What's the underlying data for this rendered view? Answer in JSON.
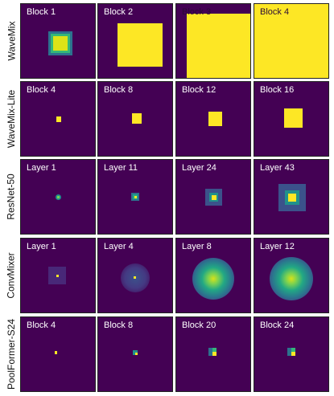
{
  "rows": [
    {
      "label": "WaveMix",
      "tiles": [
        {
          "label": "Block 1"
        },
        {
          "label": "Block 2"
        },
        {
          "label": "Block 3"
        },
        {
          "label": "Block 4"
        }
      ]
    },
    {
      "label": "WaveMix-Lite",
      "tiles": [
        {
          "label": "Block 4"
        },
        {
          "label": "Block 8"
        },
        {
          "label": "Block 12"
        },
        {
          "label": "Block 16"
        }
      ]
    },
    {
      "label": "ResNet-50",
      "tiles": [
        {
          "label": "Layer 1"
        },
        {
          "label": "Layer 11"
        },
        {
          "label": "Layer 24"
        },
        {
          "label": "Layer 43"
        }
      ]
    },
    {
      "label": "ConvMixer",
      "tiles": [
        {
          "label": "Layer 1"
        },
        {
          "label": "Layer 4"
        },
        {
          "label": "Layer 8"
        },
        {
          "label": "Layer 12"
        }
      ]
    },
    {
      "label": "PoolFormer-S24",
      "tiles": [
        {
          "label": "Block 4"
        },
        {
          "label": "Block 8"
        },
        {
          "label": "Block 20"
        },
        {
          "label": "Block 24"
        }
      ]
    }
  ],
  "colors": {
    "background": "#440154",
    "high": "#fde725",
    "mid": "#21918c",
    "low": "#3b528b"
  }
}
